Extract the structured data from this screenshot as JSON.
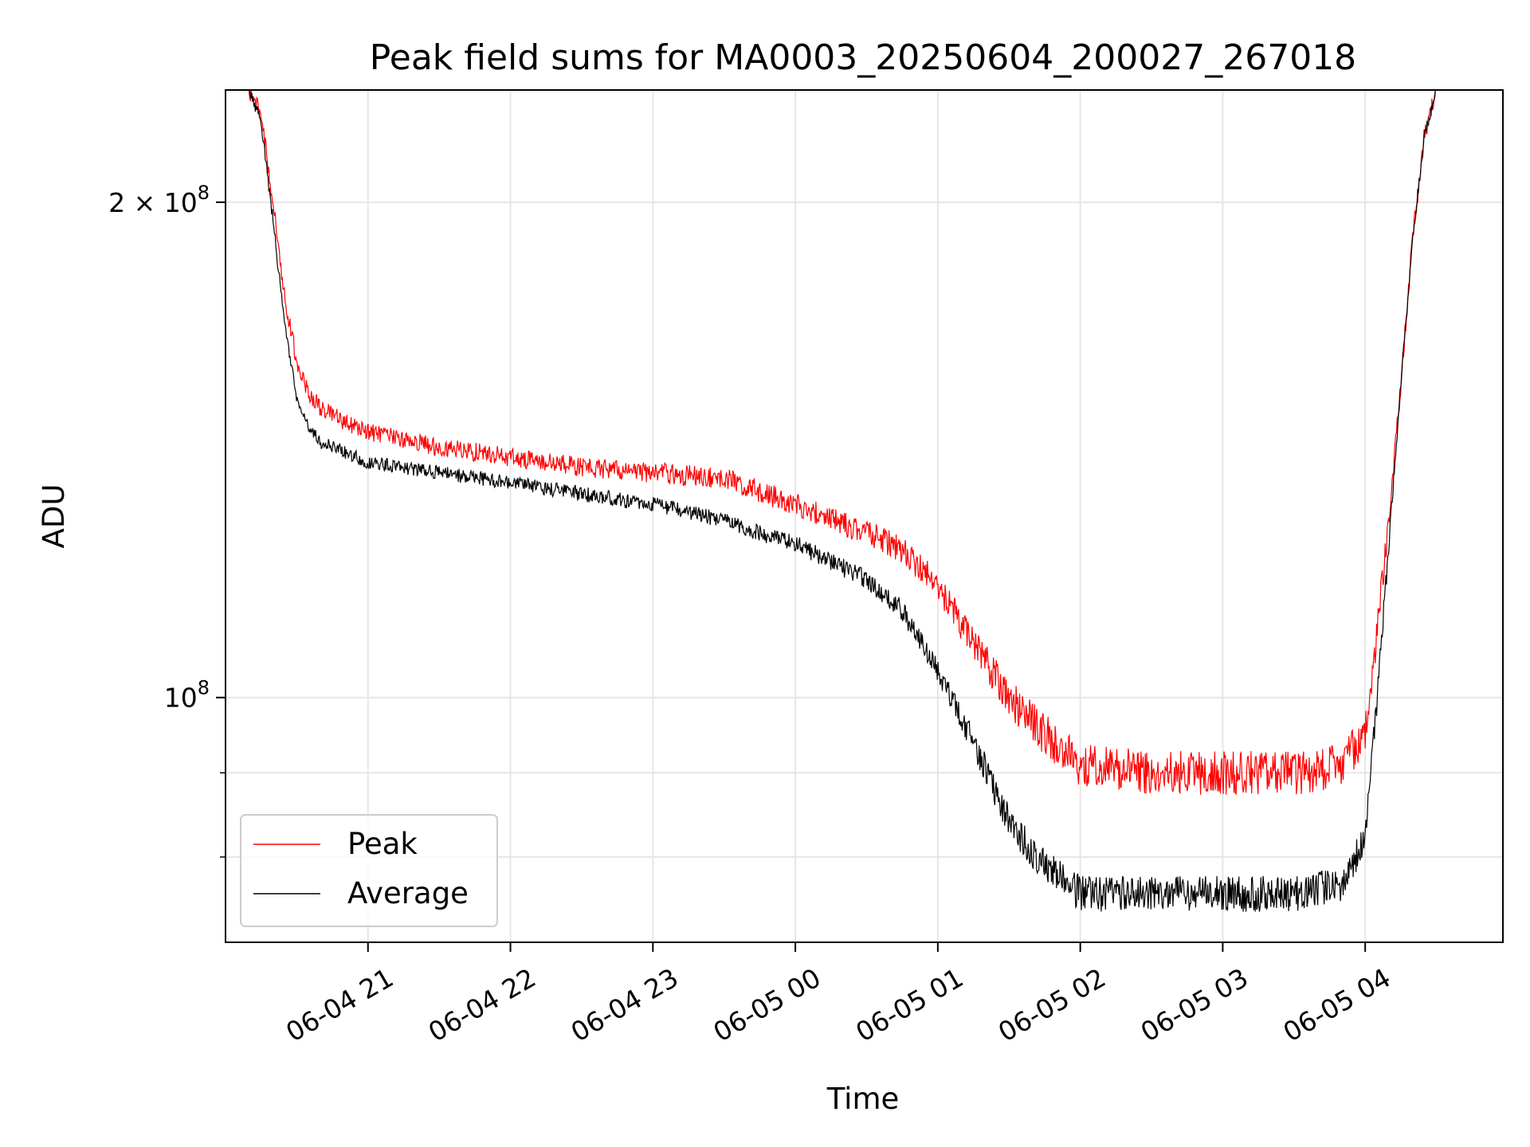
{
  "chart_data": {
    "type": "line",
    "title": "Peak field sums for MA0003_20250604_200027_267018",
    "xlabel": "Time",
    "ylabel": "ADU",
    "x_type": "datetime",
    "xlim": [
      "2025-06-04 20:00",
      "2025-06-05 04:58"
    ],
    "ylim": [
      71000000,
      234000000
    ],
    "y_scale": "log",
    "grid": true,
    "legend_position": "lower-left",
    "x_ticks": [
      {
        "value": "2025-06-04 21:00",
        "label": "06-04 21"
      },
      {
        "value": "2025-06-04 22:00",
        "label": "06-04 22"
      },
      {
        "value": "2025-06-04 23:00",
        "label": "06-04 23"
      },
      {
        "value": "2025-06-05 00:00",
        "label": "06-05 00"
      },
      {
        "value": "2025-06-05 01:00",
        "label": "06-05 01"
      },
      {
        "value": "2025-06-05 02:00",
        "label": "06-05 02"
      },
      {
        "value": "2025-06-05 03:00",
        "label": "06-05 03"
      },
      {
        "value": "2025-06-05 04:00",
        "label": "06-05 04"
      }
    ],
    "y_major_ticks": [
      {
        "value": 100000000,
        "base": "10",
        "exp": "8",
        "mantissa": ""
      },
      {
        "value": 200000000,
        "base": "10",
        "exp": "8",
        "mantissa": "2 × "
      }
    ],
    "y_minor_ticks": [
      80000000,
      90000000
    ],
    "series": [
      {
        "name": "Peak",
        "color": "#ff0000",
        "noise": 0.045,
        "x": [
          "2025-06-04 20:00",
          "2025-06-04 20:10",
          "2025-06-04 20:15",
          "2025-06-04 20:20",
          "2025-06-04 20:25",
          "2025-06-04 20:30",
          "2025-06-04 20:35",
          "2025-06-04 20:40",
          "2025-06-04 20:50",
          "2025-06-04 21:00",
          "2025-06-04 21:30",
          "2025-06-04 22:00",
          "2025-06-04 22:30",
          "2025-06-04 23:00",
          "2025-06-04 23:30",
          "2025-06-05 00:00",
          "2025-06-05 00:30",
          "2025-06-05 00:45",
          "2025-06-05 01:00",
          "2025-06-05 01:15",
          "2025-06-05 01:30",
          "2025-06-05 01:45",
          "2025-06-05 02:00",
          "2025-06-05 02:30",
          "2025-06-05 03:00",
          "2025-06-05 03:30",
          "2025-06-05 03:50",
          "2025-06-05 04:00",
          "2025-06-05 04:05",
          "2025-06-05 04:10",
          "2025-06-05 04:15",
          "2025-06-05 04:20",
          "2025-06-05 04:25",
          "2025-06-05 04:30",
          "2025-06-05 04:58"
        ],
        "y": [
          234000000,
          234000000,
          226000000,
          200000000,
          175000000,
          160000000,
          153000000,
          150000000,
          147000000,
          145000000,
          142000000,
          140000000,
          138000000,
          137000000,
          136000000,
          131000000,
          126000000,
          123000000,
          117000000,
          108000000,
          100000000,
          95000000,
          91000000,
          90000000,
          90000000,
          90000000,
          91000000,
          95000000,
          110000000,
          128000000,
          155000000,
          190000000,
          220000000,
          234000000,
          234000000
        ]
      },
      {
        "name": "Average",
        "color": "#000000",
        "noise": 0.03,
        "x": [
          "2025-06-04 20:00",
          "2025-06-04 20:10",
          "2025-06-04 20:15",
          "2025-06-04 20:20",
          "2025-06-04 20:25",
          "2025-06-04 20:30",
          "2025-06-04 20:35",
          "2025-06-04 20:40",
          "2025-06-04 20:50",
          "2025-06-04 21:00",
          "2025-06-04 21:30",
          "2025-06-04 22:00",
          "2025-06-04 22:30",
          "2025-06-04 23:00",
          "2025-06-04 23:30",
          "2025-06-05 00:00",
          "2025-06-05 00:30",
          "2025-06-05 00:45",
          "2025-06-05 01:00",
          "2025-06-05 01:15",
          "2025-06-05 01:30",
          "2025-06-05 01:45",
          "2025-06-05 02:00",
          "2025-06-05 02:30",
          "2025-06-05 03:00",
          "2025-06-05 03:30",
          "2025-06-05 03:50",
          "2025-06-05 04:00",
          "2025-06-05 04:05",
          "2025-06-05 04:10",
          "2025-06-05 04:15",
          "2025-06-05 04:20",
          "2025-06-05 04:25",
          "2025-06-05 04:30",
          "2025-06-05 04:58"
        ],
        "y": [
          234000000,
          234000000,
          224000000,
          195000000,
          168000000,
          152000000,
          146000000,
          143000000,
          141000000,
          139000000,
          137000000,
          135000000,
          133000000,
          131000000,
          128000000,
          124000000,
          118000000,
          113000000,
          104000000,
          94000000,
          84000000,
          79000000,
          76000000,
          76000000,
          76000000,
          76000000,
          77000000,
          82000000,
          100000000,
          124000000,
          155000000,
          190000000,
          220000000,
          234000000,
          234000000
        ]
      }
    ]
  }
}
